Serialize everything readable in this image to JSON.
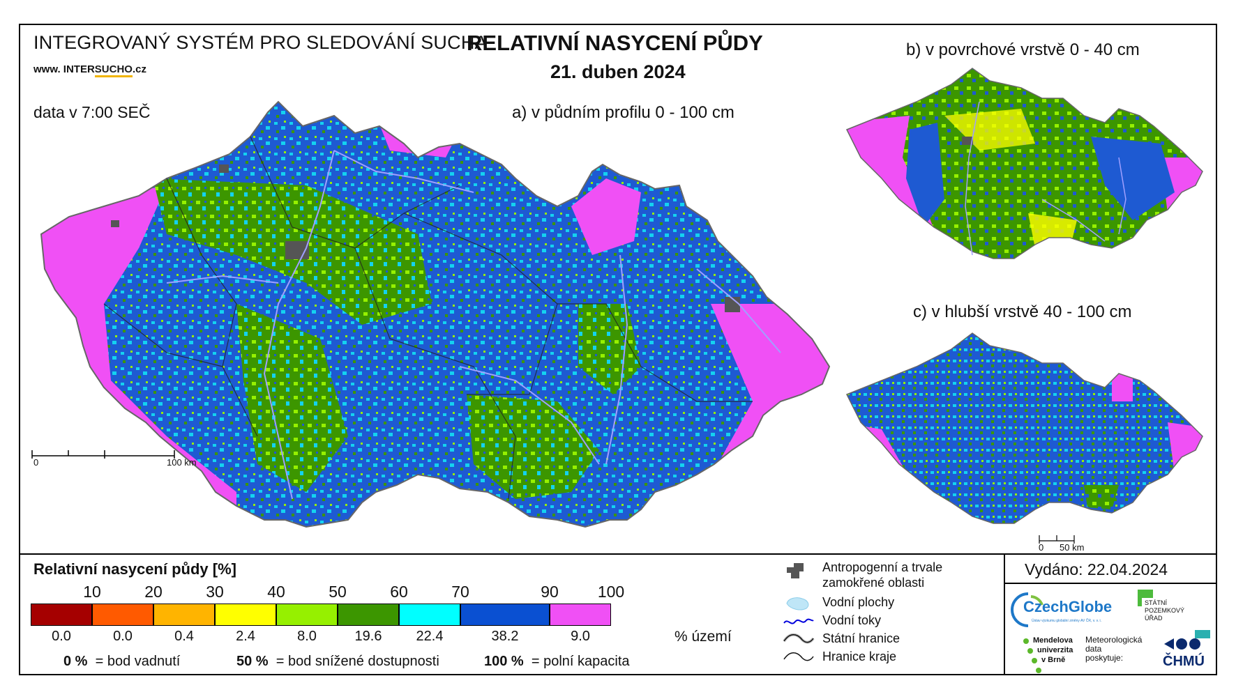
{
  "header": {
    "system_title": "INTEGROVANÝ SYSTÉM PRO SLEDOVÁNÍ SUCHA",
    "website_prefix": "www. INTER",
    "website_accent": "SUCHO",
    "website_suffix": ".cz",
    "data_time": "data v 7:00 SEČ",
    "main_title": "RELATIVNÍ NASYCENÍ PŮDY",
    "date": "21. duben 2024"
  },
  "maps": {
    "a_title": "a) v půdním profilu 0 - 100 cm",
    "b_title": "b) v povrchové vrstvě 0 - 40 cm",
    "c_title": "c) v hlubší vrstvě 40 - 100 cm",
    "scale_a_zero": "0",
    "scale_a_end": "100 km",
    "scale_c_zero": "0",
    "scale_c_end": "50 km"
  },
  "legend": {
    "title": "Relativní nasycení půdy [%]",
    "ticks": [
      "10",
      "20",
      "30",
      "40",
      "50",
      "60",
      "70",
      "90",
      "100"
    ],
    "classes": [
      {
        "color": "#a50000",
        "pct": "0.0"
      },
      {
        "color": "#ff5a00",
        "pct": "0.0"
      },
      {
        "color": "#ffb400",
        "pct": "0.4"
      },
      {
        "color": "#ffff00",
        "pct": "2.4"
      },
      {
        "color": "#96f000",
        "pct": "8.0"
      },
      {
        "color": "#3c9600",
        "pct": "19.6"
      },
      {
        "color": "#00ffff",
        "pct": "22.4"
      },
      {
        "color": "#0a50d2",
        "pct": "38.2"
      },
      {
        "color": "#f050f5",
        "pct": "9.0"
      }
    ],
    "area_unit": "% území",
    "note1_value": "0 %",
    "note1_text": "= bod vadnutí",
    "note2_value": "50 %",
    "note2_text": "= bod snížené dostupnosti",
    "note3_value": "100 %",
    "note3_text": "= polní kapacita"
  },
  "symbols": {
    "urban": "Antropogenní a trvale zamokřené oblasti",
    "urban_line1": "Antropogenní a trvale",
    "urban_line2": "zamokřené oblasti",
    "water_bodies": "Vodní plochy",
    "rivers": "Vodní toky",
    "border_state": "Státní hranice",
    "border_region": "Hranice kraje"
  },
  "footer": {
    "issued": "Vydáno: 22.04.2024",
    "czechglobe": "CzechGlobe",
    "czechglobe_sub": "Ústav výzkumu globální změny AV ČR, v. v. i.",
    "spu_line1": "STÁTNÍ",
    "spu_line2": "POZEMKOVÝ",
    "spu_line3": "ÚŘAD",
    "mendel_line1": "Mendelova",
    "mendel_line2": "univerzita",
    "mendel_line3": "v Brně",
    "meteo_line1": "Meteorologická",
    "meteo_line2": "data",
    "meteo_line3": "poskytuje:",
    "chmu": "ČHMÚ"
  },
  "colors": {
    "magenta": "#f050f5",
    "blue": "#1e5ad2",
    "cyan": "#14d2f0",
    "green": "#3c9600",
    "lightgreen": "#96f000",
    "yellow": "#ffff00",
    "urban": "#555555",
    "river": "#a0a0ff"
  }
}
